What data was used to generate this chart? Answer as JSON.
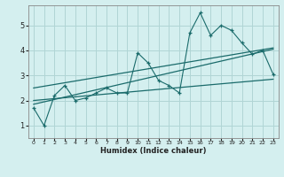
{
  "title": "",
  "xlabel": "Humidex (Indice chaleur)",
  "ylabel": "",
  "background_color": "#d4efef",
  "line_color": "#1a6b6b",
  "grid_color": "#b0d5d5",
  "xlim": [
    -0.5,
    23.5
  ],
  "ylim": [
    0.5,
    5.8
  ],
  "xticks": [
    0,
    1,
    2,
    3,
    4,
    5,
    6,
    7,
    8,
    9,
    10,
    11,
    12,
    13,
    14,
    15,
    16,
    17,
    18,
    19,
    20,
    21,
    22,
    23
  ],
  "yticks": [
    1,
    2,
    3,
    4,
    5
  ],
  "data_x": [
    0,
    1,
    2,
    3,
    4,
    5,
    6,
    7,
    8,
    9,
    10,
    11,
    12,
    13,
    14,
    15,
    16,
    17,
    18,
    19,
    20,
    21,
    22,
    23
  ],
  "data_y": [
    1.7,
    1.0,
    2.2,
    2.6,
    2.0,
    2.1,
    2.3,
    2.5,
    2.3,
    2.3,
    3.9,
    3.5,
    2.8,
    2.6,
    2.3,
    4.7,
    5.5,
    4.6,
    5.0,
    4.8,
    4.3,
    3.85,
    4.0,
    3.05
  ],
  "upper_line": [
    [
      0,
      2.5
    ],
    [
      23,
      4.1
    ]
  ],
  "lower_line": [
    [
      0,
      2.0
    ],
    [
      23,
      2.85
    ]
  ],
  "mid_line": [
    [
      0,
      1.85
    ],
    [
      23,
      4.05
    ]
  ]
}
